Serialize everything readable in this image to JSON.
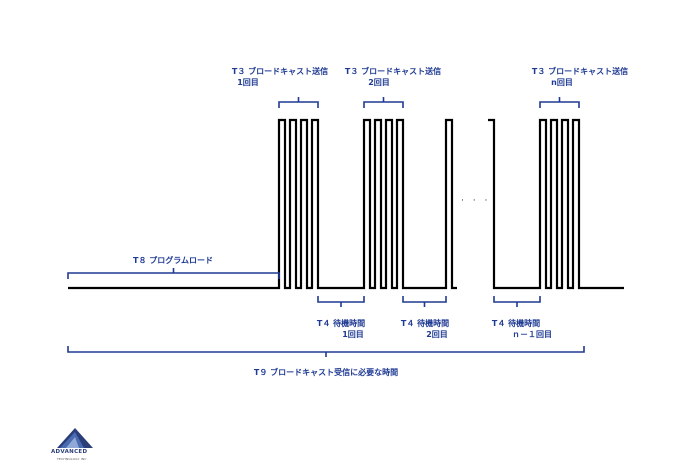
{
  "labels": {
    "t3_broadcast_1": "T３ ブロードキャスト送信",
    "t3_broadcast_1_count": "1回目",
    "t3_broadcast_2": "T３ ブロードキャスト送信",
    "t3_broadcast_2_count": "2回目",
    "t3_broadcast_n": "T３ ブロードキャスト送信",
    "t3_broadcast_n_count": "n回目",
    "t8_program_load": "T８ プログラムロード",
    "t4_wait_1": "T４ 待機時間",
    "t4_wait_1_count": "1回目",
    "t4_wait_2": "T４ 待機時間",
    "t4_wait_2_count": "2回目",
    "t4_wait_n1": "T４ 待機時間",
    "t4_wait_n1_count": "ｎ－１回目",
    "t9_total": "T９ ブロードキャスト受信に必要な時間"
  },
  "ellipsis": "· · ·",
  "logo": {
    "name": "ADVANCED",
    "subtitle": "TECHNOLOGY INC"
  },
  "colors": {
    "bracket": "#1f3a93",
    "signal": "#000000",
    "logo": "#2b3e7a"
  }
}
